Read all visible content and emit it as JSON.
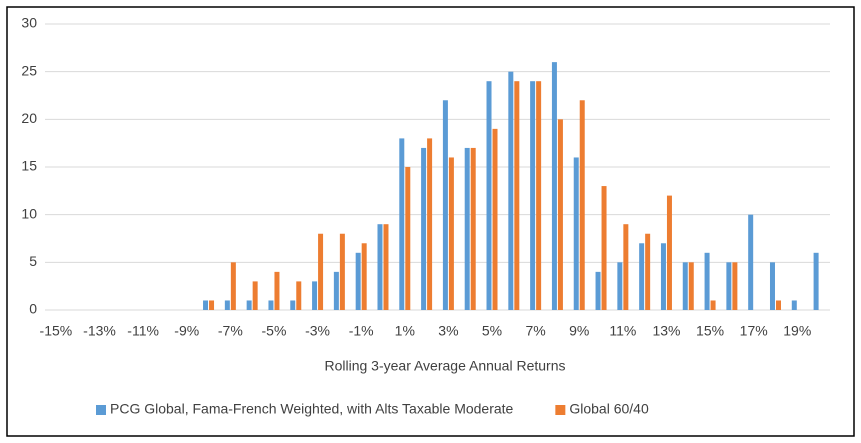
{
  "chart_data": {
    "type": "bar",
    "xlabel": "Rolling 3-year Average Annual Returns",
    "categories": [
      "-15%",
      null,
      "-13%",
      null,
      "-11%",
      null,
      "-9%",
      null,
      "-7%",
      null,
      "-5%",
      null,
      "-3%",
      null,
      "-1%",
      null,
      "1%",
      null,
      "3%",
      null,
      "5%",
      null,
      "7%",
      null,
      "9%",
      null,
      "11%",
      null,
      "13%",
      null,
      "15%",
      null,
      "17%",
      null,
      "19%",
      null
    ],
    "series": [
      {
        "name": "PCG Global, Fama-French Weighted, with Alts Taxable Moderate",
        "color": "#5b9bd5",
        "values": [
          0,
          0,
          0,
          0,
          0,
          0,
          0,
          1,
          1,
          1,
          1,
          1,
          3,
          4,
          6,
          9,
          18,
          17,
          22,
          17,
          24,
          25,
          24,
          26,
          16,
          4,
          5,
          7,
          7,
          5,
          6,
          5,
          10,
          5,
          1,
          6
        ]
      },
      {
        "name": "Global 60/40",
        "color": "#ed7d31",
        "values": [
          0,
          0,
          0,
          0,
          0,
          0,
          0,
          1,
          5,
          3,
          4,
          3,
          8,
          8,
          7,
          9,
          15,
          18,
          16,
          17,
          19,
          24,
          24,
          20,
          22,
          13,
          9,
          8,
          12,
          5,
          1,
          5,
          0,
          1,
          0,
          0
        ]
      }
    ],
    "ylim": [
      0,
      30
    ],
    "yticks": [
      0,
      5,
      10,
      15,
      20,
      25,
      30
    ],
    "grid": true,
    "legend": "bottom"
  }
}
